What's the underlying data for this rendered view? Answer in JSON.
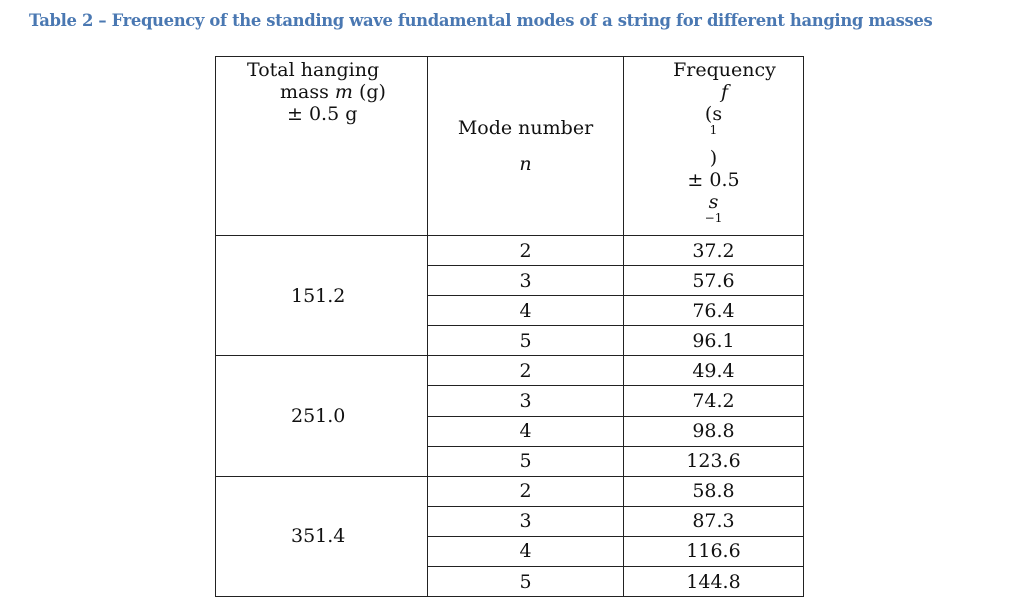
{
  "caption": "Table 2 – Frequency of the standing wave fundamental modes of a string for different hanging masses",
  "headers": {
    "mass_line1": "Total hanging",
    "mass_line2_pre": "mass ",
    "mass_line2_sym": "m",
    "mass_line2_post": " (g)",
    "mass_line3": "± 0.5 g",
    "mode_line1": "Mode number",
    "mode_line2": "n",
    "freq_line1_pre": "Frequency ",
    "freq_line1_sym": "f",
    "freq_line2_pre": "(s",
    "freq_line2_sup": "1",
    "freq_line2_post": ")",
    "freq_line3_pre": "± 0.5 ",
    "freq_line3_sym": "s",
    "freq_line3_sup": "−1"
  },
  "groups": [
    {
      "mass": "151.2",
      "rows": [
        {
          "mode": "2",
          "frequency": "37.2"
        },
        {
          "mode": "3",
          "frequency": "57.6"
        },
        {
          "mode": "4",
          "frequency": "76.4"
        },
        {
          "mode": "5",
          "frequency": "96.1"
        }
      ]
    },
    {
      "mass": "251.0",
      "rows": [
        {
          "mode": "2",
          "frequency": "49.4"
        },
        {
          "mode": "3",
          "frequency": "74.2"
        },
        {
          "mode": "4",
          "frequency": "98.8"
        },
        {
          "mode": "5",
          "frequency": "123.6"
        }
      ]
    },
    {
      "mass": "351.4",
      "rows": [
        {
          "mode": "2",
          "frequency": "58.8"
        },
        {
          "mode": "3",
          "frequency": "87.3"
        },
        {
          "mode": "4",
          "frequency": "116.6"
        },
        {
          "mode": "5",
          "frequency": "144.8"
        }
      ]
    }
  ]
}
